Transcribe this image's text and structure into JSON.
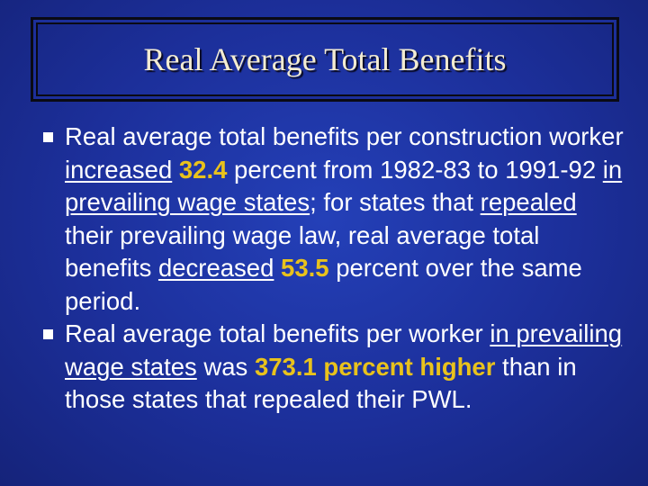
{
  "slide": {
    "title": "Real Average Total Benefits",
    "bullets": [
      {
        "runs": [
          {
            "text": "Real average total benefits per construction worker ",
            "style": "plain"
          },
          {
            "text": "increased",
            "style": "underline"
          },
          {
            "text": " 32.4",
            "style": "highlight"
          },
          {
            "text": " percent from 1982-83 to 1991-92 ",
            "style": "plain"
          },
          {
            "text": "in prevailing wage states",
            "style": "underline"
          },
          {
            "text": "; for states that ",
            "style": "plain"
          },
          {
            "text": "repealed",
            "style": "underline"
          },
          {
            "text": " their prevailing wage law, real average total benefits ",
            "style": "plain"
          },
          {
            "text": "decreased",
            "style": "underline"
          },
          {
            "text": " 53.5",
            "style": "highlight"
          },
          {
            "text": " percent over the same period.",
            "style": "plain"
          }
        ]
      },
      {
        "runs": [
          {
            "text": "Real average total benefits per worker ",
            "style": "plain"
          },
          {
            "text": "in prevailing wage states",
            "style": "underline"
          },
          {
            "text": " was ",
            "style": "plain"
          },
          {
            "text": "373.1 percent higher",
            "style": "highlight"
          },
          {
            "text": " than in those states that repealed their PWL.",
            "style": "plain"
          }
        ]
      }
    ]
  }
}
